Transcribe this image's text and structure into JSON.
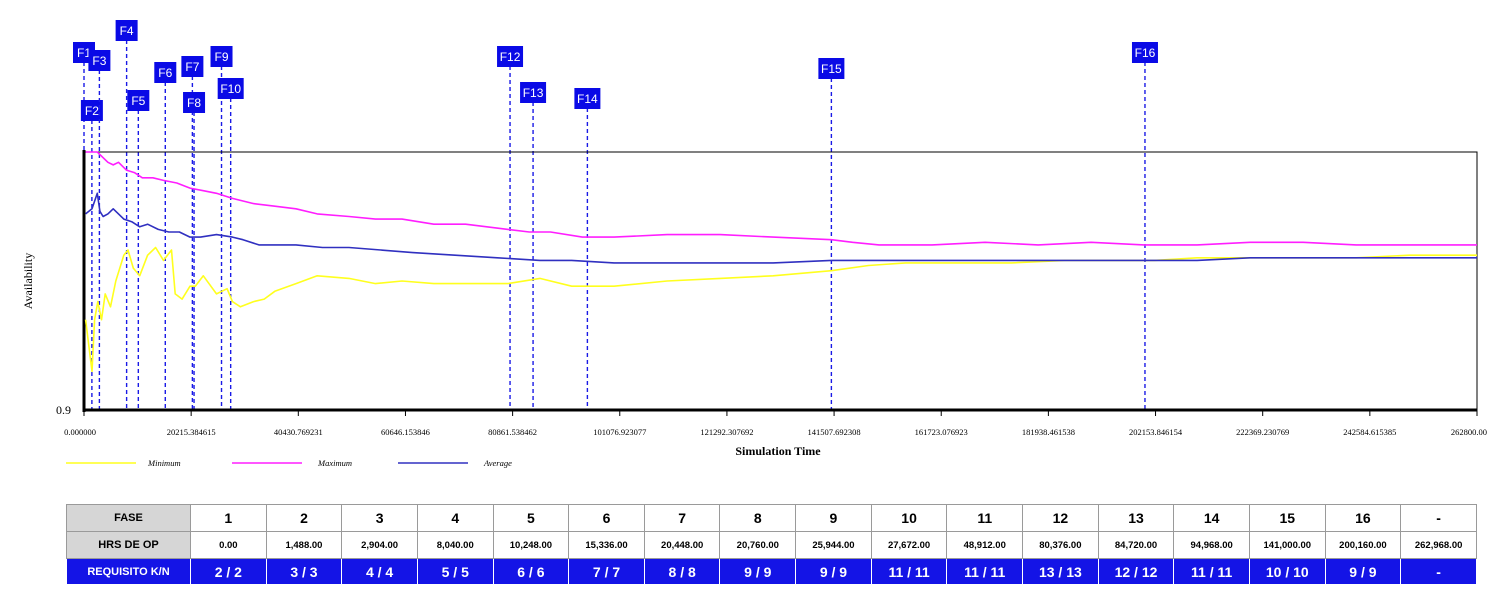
{
  "chart_data": {
    "type": "line",
    "title": "",
    "xlabel": "Simulation Time",
    "ylabel": "Availability",
    "xlim": [
      0,
      262800
    ],
    "ylim": [
      0.9,
      1.0
    ],
    "y_min_tick_label": "0.9",
    "x_tick_labels": [
      "0.000000",
      "20215.384615",
      "40430.769231",
      "60646.153846",
      "80861.538462",
      "101076.923077",
      "121292.307692",
      "141507.692308",
      "161723.076923",
      "181938.461538",
      "202153.846154",
      "222369.230769",
      "242584.615385",
      "262800.00"
    ],
    "x_ticks": [
      0,
      20215.384615,
      40430.769231,
      60646.153846,
      80861.538462,
      101076.923077,
      121292.307692,
      141507.692308,
      161723.076923,
      181938.461538,
      202153.846154,
      222369.230769,
      242584.615385,
      262800
    ],
    "legend_position": "bottom-left",
    "series": [
      {
        "name": "Minimum",
        "color": "#ffff1e",
        "x": [
          300,
          1500,
          2000,
          2600,
          3300,
          4000,
          5000,
          6000,
          7500,
          8300,
          9300,
          10500,
          12000,
          13500,
          15000,
          16500,
          17200,
          18500,
          20000,
          21000,
          22500,
          25000,
          27000,
          28000,
          29500,
          32000,
          34000,
          36000,
          40000,
          44000,
          50000,
          55000,
          60000,
          66000,
          72000,
          80000,
          86000,
          92000,
          100000,
          110000,
          120000,
          130000,
          141000,
          148000,
          155000,
          165000,
          175000,
          185000,
          195000,
          202000,
          210000,
          220000,
          230000,
          240000,
          250000,
          262800
        ],
        "values": [
          0.935,
          0.915,
          0.935,
          0.942,
          0.935,
          0.945,
          0.94,
          0.95,
          0.96,
          0.962,
          0.955,
          0.952,
          0.96,
          0.963,
          0.958,
          0.962,
          0.945,
          0.943,
          0.948,
          0.948,
          0.952,
          0.945,
          0.947,
          0.942,
          0.94,
          0.942,
          0.943,
          0.946,
          0.949,
          0.952,
          0.951,
          0.949,
          0.95,
          0.949,
          0.949,
          0.949,
          0.951,
          0.948,
          0.948,
          0.95,
          0.951,
          0.952,
          0.954,
          0.956,
          0.957,
          0.957,
          0.957,
          0.958,
          0.958,
          0.958,
          0.959,
          0.959,
          0.959,
          0.959,
          0.96,
          0.96
        ]
      },
      {
        "name": "Maximum",
        "color": "#ff1eff",
        "x": [
          300,
          1200,
          2500,
          3500,
          4500,
          5500,
          6500,
          8000,
          9500,
          11000,
          13000,
          15000,
          17500,
          20000,
          22500,
          25000,
          28000,
          32000,
          36000,
          40000,
          44000,
          50000,
          55000,
          60000,
          66000,
          72000,
          80000,
          84000,
          88000,
          94000,
          100000,
          110000,
          120000,
          130000,
          141000,
          145000,
          150000,
          160000,
          170000,
          180000,
          190000,
          200000,
          210000,
          220000,
          230000,
          240000,
          250000,
          262800
        ],
        "values": [
          1.0,
          1.0,
          1.0,
          0.998,
          0.996,
          0.995,
          0.996,
          0.993,
          0.992,
          0.99,
          0.99,
          0.989,
          0.988,
          0.986,
          0.985,
          0.984,
          0.982,
          0.98,
          0.979,
          0.978,
          0.976,
          0.975,
          0.974,
          0.974,
          0.972,
          0.972,
          0.97,
          0.969,
          0.969,
          0.967,
          0.967,
          0.968,
          0.968,
          0.967,
          0.966,
          0.965,
          0.964,
          0.964,
          0.965,
          0.964,
          0.965,
          0.964,
          0.964,
          0.965,
          0.965,
          0.964,
          0.964,
          0.964
        ]
      },
      {
        "name": "Average",
        "color": "#3030c0",
        "x": [
          300,
          1500,
          2500,
          3000,
          3600,
          4500,
          5500,
          6500,
          7500,
          9000,
          10500,
          12000,
          14000,
          16000,
          18000,
          20000,
          22000,
          25000,
          28000,
          30000,
          33000,
          36000,
          40000,
          45000,
          50000,
          56000,
          62000,
          70000,
          78000,
          86000,
          92000,
          100000,
          110000,
          120000,
          130000,
          141000,
          150000,
          160000,
          170000,
          180000,
          190000,
          200000,
          210000,
          220000,
          230000,
          240000,
          250000,
          262800
        ],
        "values": [
          0.976,
          0.978,
          0.984,
          0.977,
          0.975,
          0.976,
          0.978,
          0.976,
          0.974,
          0.973,
          0.971,
          0.972,
          0.97,
          0.969,
          0.969,
          0.967,
          0.967,
          0.968,
          0.967,
          0.966,
          0.964,
          0.964,
          0.964,
          0.963,
          0.963,
          0.962,
          0.961,
          0.96,
          0.959,
          0.958,
          0.958,
          0.957,
          0.957,
          0.957,
          0.957,
          0.958,
          0.958,
          0.958,
          0.958,
          0.958,
          0.958,
          0.958,
          0.958,
          0.959,
          0.959,
          0.959,
          0.959,
          0.959
        ]
      }
    ],
    "phase_markers": [
      {
        "label": "F1",
        "x": 0
      },
      {
        "label": "F2",
        "x": 1488
      },
      {
        "label": "F3",
        "x": 2904
      },
      {
        "label": "F4",
        "x": 8040
      },
      {
        "label": "F5",
        "x": 10248
      },
      {
        "label": "F6",
        "x": 15336
      },
      {
        "label": "F7",
        "x": 20448
      },
      {
        "label": "F8",
        "x": 20760
      },
      {
        "label": "F9",
        "x": 25944
      },
      {
        "label": "F10",
        "x": 27672
      },
      {
        "label": "F12",
        "x": 80376
      },
      {
        "label": "F13",
        "x": 84720
      },
      {
        "label": "F14",
        "x": 94968
      },
      {
        "label": "F15",
        "x": 141000
      },
      {
        "label": "F16",
        "x": 200160
      }
    ]
  },
  "table": {
    "header_fase": "FASE",
    "header_hrs": "HRS DE OP",
    "header_req": "REQUISITO K/N",
    "columns": [
      {
        "fase": "1",
        "hrs": "0.00",
        "req": "2 / 2"
      },
      {
        "fase": "2",
        "hrs": "1,488.00",
        "req": "3 / 3"
      },
      {
        "fase": "3",
        "hrs": "2,904.00",
        "req": "4 / 4"
      },
      {
        "fase": "4",
        "hrs": "8,040.00",
        "req": "5 / 5"
      },
      {
        "fase": "5",
        "hrs": "10,248.00",
        "req": "6 / 6"
      },
      {
        "fase": "6",
        "hrs": "15,336.00",
        "req": "7 / 7"
      },
      {
        "fase": "7",
        "hrs": "20,448.00",
        "req": "8 / 8"
      },
      {
        "fase": "8",
        "hrs": "20,760.00",
        "req": "9 / 9"
      },
      {
        "fase": "9",
        "hrs": "25,944.00",
        "req": "9 / 9"
      },
      {
        "fase": "10",
        "hrs": "27,672.00",
        "req": "11 / 11"
      },
      {
        "fase": "11",
        "hrs": "48,912.00",
        "req": "11 / 11"
      },
      {
        "fase": "12",
        "hrs": "80,376.00",
        "req": "13 / 13"
      },
      {
        "fase": "13",
        "hrs": "84,720.00",
        "req": "12 / 12"
      },
      {
        "fase": "14",
        "hrs": "94,968.00",
        "req": "11 / 11"
      },
      {
        "fase": "15",
        "hrs": "141,000.00",
        "req": "10 / 10"
      },
      {
        "fase": "16",
        "hrs": "200,160.00",
        "req": "9 / 9"
      },
      {
        "fase": "-",
        "hrs": "262,968.00",
        "req": "-"
      }
    ]
  },
  "colors": {
    "marker_box": "#0a0ae6",
    "marker_line": "#1a1ae6",
    "req_row": "#1414e6",
    "header_cell": "#d6d6d6"
  }
}
